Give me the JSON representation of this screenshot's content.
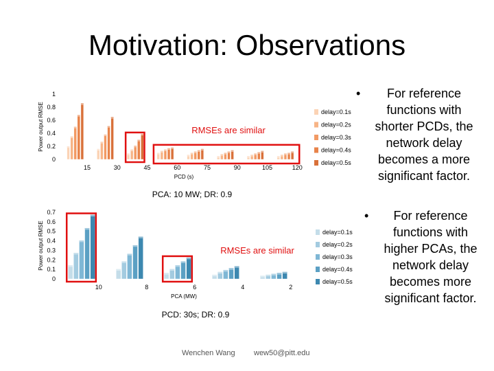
{
  "slide": {
    "title": "Motivation: Observations",
    "footer_author": "Wenchen Wang",
    "footer_email": "wew50@pitt.edu"
  },
  "bullets": [
    {
      "marker": "•",
      "lines": [
        "For reference",
        "functions with",
        "shorter PCDs, the",
        "network delay",
        "becomes a more",
        "significant factor."
      ]
    },
    {
      "marker": "•",
      "lines": [
        "For reference",
        "functions with",
        "higher PCAs, the",
        "network delay",
        "becomes more",
        "significant factor."
      ]
    }
  ],
  "chart_data": [
    {
      "type": "bar",
      "title": "",
      "caption": "PCA: 10 MW; DR: 0.9",
      "xlabel": "PCD (s)",
      "ylabel": "Power output RMSE",
      "ylim": [
        0,
        1
      ],
      "yticks": [
        0,
        0.2,
        0.4,
        0.6,
        0.8,
        1
      ],
      "ytick_labels": [
        "0",
        "0.2",
        "0.4",
        "0.6",
        "0.8",
        "1"
      ],
      "categories": [
        "15",
        "30",
        "45",
        "60",
        "75",
        "90",
        "105",
        "120"
      ],
      "annotation": "RMSEs are similar",
      "highlight_categories": [
        "45"
      ],
      "highlight_range": [
        "60",
        "120"
      ],
      "series": [
        {
          "name": "delay=0.1s",
          "color": "#fbd3b5",
          "values": [
            0.18,
            0.14,
            0.07,
            0.08,
            0.05,
            0.03,
            0.03,
            0.03
          ]
        },
        {
          "name": "delay=0.2s",
          "color": "#f7b486",
          "values": [
            0.33,
            0.25,
            0.13,
            0.11,
            0.08,
            0.06,
            0.05,
            0.05
          ]
        },
        {
          "name": "delay=0.3s",
          "color": "#f29a64",
          "values": [
            0.48,
            0.36,
            0.19,
            0.13,
            0.1,
            0.08,
            0.07,
            0.07
          ]
        },
        {
          "name": "delay=0.4s",
          "color": "#e8834a",
          "values": [
            0.66,
            0.49,
            0.28,
            0.15,
            0.12,
            0.1,
            0.09,
            0.08
          ]
        },
        {
          "name": "delay=0.5s",
          "color": "#d9713a",
          "values": [
            0.84,
            0.63,
            0.37,
            0.16,
            0.14,
            0.12,
            0.11,
            0.1
          ]
        }
      ]
    },
    {
      "type": "bar",
      "title": "",
      "caption": "PCD: 30s; DR: 0.9",
      "xlabel": "PCA (MW)",
      "ylabel": "Power output RMSE",
      "ylim": [
        0,
        0.7
      ],
      "yticks": [
        0,
        0.1,
        0.2,
        0.3,
        0.4,
        0.5,
        0.6,
        0.7
      ],
      "ytick_labels": [
        "0",
        "0.1",
        "0.2",
        "0.3",
        "0.4",
        "0.5",
        "0.6",
        "0.7"
      ],
      "categories": [
        "10",
        "8",
        "6",
        "4",
        "2"
      ],
      "annotation": "RMSEs are similar",
      "highlight_categories": [
        "10",
        "6"
      ],
      "highlight_range": [],
      "series": [
        {
          "name": "delay=0.1s",
          "color": "#c4dde9",
          "values": [
            0.13,
            0.09,
            0.05,
            0.03,
            0.02
          ]
        },
        {
          "name": "delay=0.2s",
          "color": "#a3cbe0",
          "values": [
            0.26,
            0.17,
            0.09,
            0.06,
            0.03
          ]
        },
        {
          "name": "delay=0.3s",
          "color": "#7fb7d5",
          "values": [
            0.39,
            0.25,
            0.13,
            0.08,
            0.04
          ]
        },
        {
          "name": "delay=0.4s",
          "color": "#5ba0c4",
          "values": [
            0.52,
            0.34,
            0.17,
            0.1,
            0.05
          ]
        },
        {
          "name": "delay=0.5s",
          "color": "#3d88b0",
          "values": [
            0.66,
            0.43,
            0.21,
            0.12,
            0.06
          ]
        }
      ]
    }
  ]
}
